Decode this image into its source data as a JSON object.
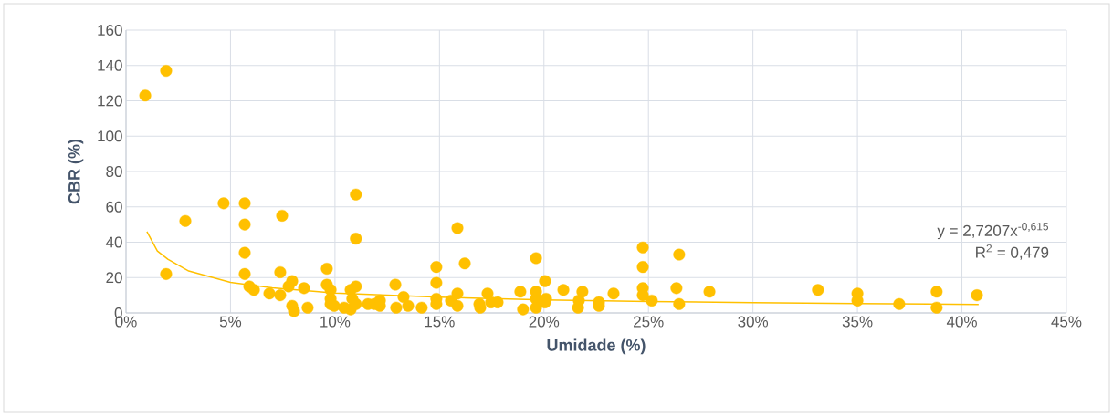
{
  "chart_data": {
    "type": "scatter",
    "xlabel": "Umidade (%)",
    "ylabel": "CBR (%)",
    "xlim": [
      0,
      0.45
    ],
    "ylim": [
      0,
      160
    ],
    "xticks": [
      {
        "value": 0,
        "label": "0%"
      },
      {
        "value": 0.05,
        "label": "5%"
      },
      {
        "value": 0.1,
        "label": "10%"
      },
      {
        "value": 0.15,
        "label": "15%"
      },
      {
        "value": 0.2,
        "label": "20%"
      },
      {
        "value": 0.25,
        "label": "25%"
      },
      {
        "value": 0.3,
        "label": "30%"
      },
      {
        "value": 0.35,
        "label": "35%"
      },
      {
        "value": 0.4,
        "label": "40%"
      },
      {
        "value": 0.45,
        "label": "45%"
      }
    ],
    "yticks": [
      0,
      20,
      40,
      60,
      80,
      100,
      120,
      140,
      160
    ],
    "grid": true,
    "marker": "circle",
    "annotations": [
      "y = 2,7207x$^{-0,615}$",
      "R$^{2}$ = 0,479"
    ],
    "series": [
      {
        "color": "#ffc000",
        "x": [
          0.0092,
          0.0192,
          0.0192,
          0.0284,
          0.0467,
          0.0568,
          0.0568,
          0.0568,
          0.0568,
          0.059,
          0.0612,
          0.0686,
          0.0738,
          0.0738,
          0.0747,
          0.0778,
          0.0795,
          0.0795,
          0.0804,
          0.0852,
          0.0869,
          0.0961,
          0.0961,
          0.0979,
          0.0979,
          0.0979,
          0.0996,
          0.1044,
          0.1075,
          0.1075,
          0.1083,
          0.11,
          0.11,
          0.11,
          0.11,
          0.1158,
          0.1188,
          0.1215,
          0.1215,
          0.1289,
          0.1293,
          0.1328,
          0.135,
          0.1415,
          0.1485,
          0.1485,
          0.1485,
          0.1485,
          0.1555,
          0.1586,
          0.1586,
          0.1586,
          0.1621,
          0.1691,
          0.1695,
          0.173,
          0.1747,
          0.1778,
          0.1887,
          0.19,
          0.1962,
          0.1962,
          0.1962,
          0.1962,
          0.2005,
          0.201,
          0.2005,
          0.2093,
          0.2163,
          0.2167,
          0.2184,
          0.2263,
          0.2263,
          0.2333,
          0.2473,
          0.2473,
          0.2473,
          0.2473,
          0.2516,
          0.2634,
          0.2647,
          0.2647,
          0.2792,
          0.3311,
          0.35,
          0.35,
          0.37,
          0.3879,
          0.3879,
          0.4072
        ],
        "values": [
          123,
          137,
          22,
          52,
          62,
          62,
          50,
          34,
          22,
          15,
          13,
          11,
          23,
          10,
          55,
          15,
          18,
          4,
          1,
          14,
          3,
          25,
          16,
          13,
          8,
          5,
          4,
          3,
          2,
          13,
          8,
          67,
          42,
          15,
          5,
          5,
          5,
          7,
          4,
          16,
          3,
          9,
          4,
          3,
          26,
          17,
          8,
          5,
          7,
          48,
          11,
          4,
          28,
          5,
          3,
          11,
          6,
          6,
          12,
          2,
          31,
          12,
          8,
          3,
          18,
          8,
          6,
          13,
          3,
          7,
          12,
          4,
          6,
          11,
          37,
          26,
          14,
          10,
          7,
          14,
          33,
          5,
          12,
          13,
          11,
          7,
          5,
          12,
          3,
          10
        ]
      },
      {
        "type": "line",
        "marker": "none",
        "color": "#ffc000",
        "x": [
          0.01,
          0.015,
          0.02,
          0.03,
          0.05,
          0.07,
          0.1,
          0.15,
          0.2,
          0.25,
          0.3,
          0.35,
          0.408
        ],
        "values": [
          46,
          35,
          30.4,
          23.7,
          17.3,
          14.2,
          11.2,
          8.9,
          7.4,
          6.5,
          5.8,
          5.3,
          4.8
        ]
      }
    ]
  }
}
